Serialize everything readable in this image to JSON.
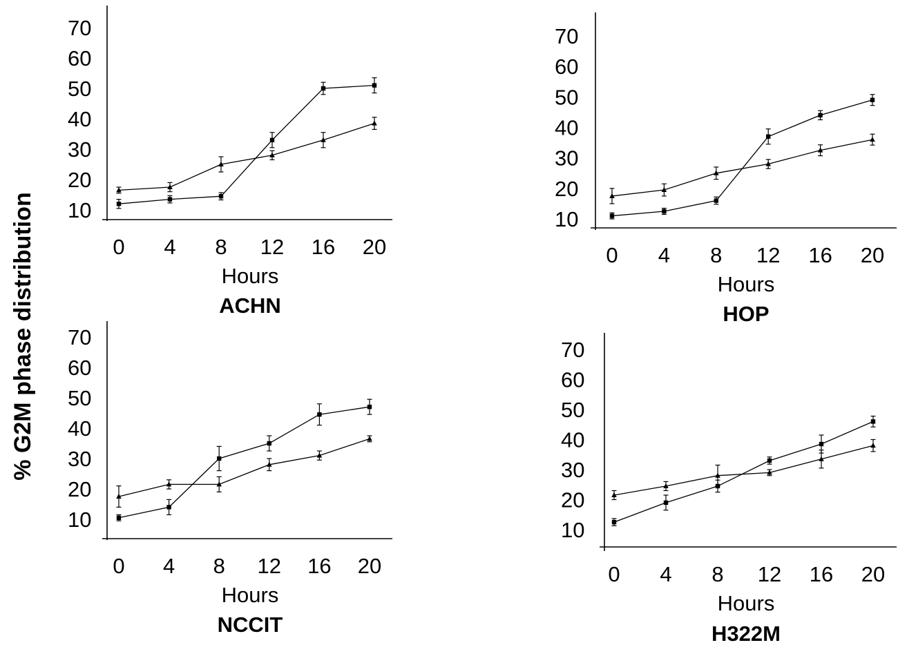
{
  "y_axis_title": "% G2M phase distribution",
  "chart_data": [
    {
      "type": "line",
      "title": "ACHN",
      "xlabel": "Hours",
      "ylabel": "",
      "x_ticks": [
        0,
        4,
        8,
        12,
        16,
        20
      ],
      "y_ticks": [
        10,
        20,
        30,
        40,
        50,
        60,
        70
      ],
      "xlim": [
        0,
        20
      ],
      "ylim": [
        10,
        70
      ],
      "x": [
        0,
        4,
        8,
        12,
        16,
        20
      ],
      "grid": false,
      "series": [
        {
          "marker": "square",
          "values": [
            12,
            13.5,
            14.5,
            33,
            50,
            51
          ],
          "errors": [
            1.5,
            1.2,
            1.2,
            2.5,
            2,
            2.5
          ]
        },
        {
          "marker": "triangle",
          "values": [
            16.5,
            17.5,
            25,
            28,
            33,
            38.5
          ],
          "errors": [
            1,
            1.5,
            2.5,
            1.5,
            2.5,
            2
          ]
        }
      ]
    },
    {
      "type": "line",
      "title": "HOP",
      "xlabel": "Hours",
      "ylabel": "",
      "x_ticks": [
        0,
        4,
        8,
        12,
        16,
        20
      ],
      "y_ticks": [
        10,
        20,
        30,
        40,
        50,
        60,
        70
      ],
      "xlim": [
        0,
        20
      ],
      "ylim": [
        10,
        70
      ],
      "x": [
        0,
        4,
        8,
        12,
        16,
        20
      ],
      "grid": false,
      "series": [
        {
          "marker": "square",
          "values": [
            11,
            12.5,
            16,
            37,
            44,
            49
          ],
          "errors": [
            1,
            1,
            1.2,
            2.5,
            1.5,
            1.8
          ]
        },
        {
          "marker": "triangle",
          "values": [
            17.5,
            19.5,
            25,
            28,
            32.5,
            36
          ],
          "errors": [
            2.5,
            2,
            2,
            1.5,
            1.8,
            1.8
          ]
        }
      ]
    },
    {
      "type": "line",
      "title": "NCCIT",
      "xlabel": "Hours",
      "ylabel": "",
      "x_ticks": [
        0,
        4,
        8,
        12,
        16,
        20
      ],
      "y_ticks": [
        10,
        20,
        30,
        40,
        50,
        60,
        70
      ],
      "xlim": [
        0,
        20
      ],
      "ylim": [
        10,
        70
      ],
      "x": [
        0,
        4,
        8,
        12,
        16,
        20
      ],
      "grid": false,
      "series": [
        {
          "marker": "square",
          "values": [
            10.5,
            14,
            30,
            35,
            44.5,
            47
          ],
          "errors": [
            1,
            2.5,
            4,
            2.5,
            3.5,
            2.5
          ]
        },
        {
          "marker": "triangle",
          "values": [
            17.5,
            21.5,
            21.5,
            28,
            31,
            36.5
          ],
          "errors": [
            3.5,
            1.5,
            2.5,
            2,
            1.5,
            1
          ]
        }
      ]
    },
    {
      "type": "line",
      "title": "H322M",
      "xlabel": "Hours",
      "ylabel": "",
      "x_ticks": [
        0,
        4,
        8,
        12,
        16,
        20
      ],
      "y_ticks": [
        10,
        20,
        30,
        40,
        50,
        60,
        70
      ],
      "xlim": [
        0,
        20
      ],
      "ylim": [
        10,
        70
      ],
      "x": [
        0,
        4,
        8,
        12,
        16,
        20
      ],
      "grid": false,
      "series": [
        {
          "marker": "square",
          "values": [
            12.5,
            19,
            24.5,
            33,
            38.5,
            46
          ],
          "errors": [
            1.2,
            2.5,
            2,
            1.2,
            3,
            1.8
          ]
        },
        {
          "marker": "triangle",
          "values": [
            21.5,
            24.5,
            28,
            29,
            33.5,
            38
          ],
          "errors": [
            1.5,
            1.5,
            3.5,
            1,
            3,
            2
          ]
        }
      ]
    }
  ]
}
